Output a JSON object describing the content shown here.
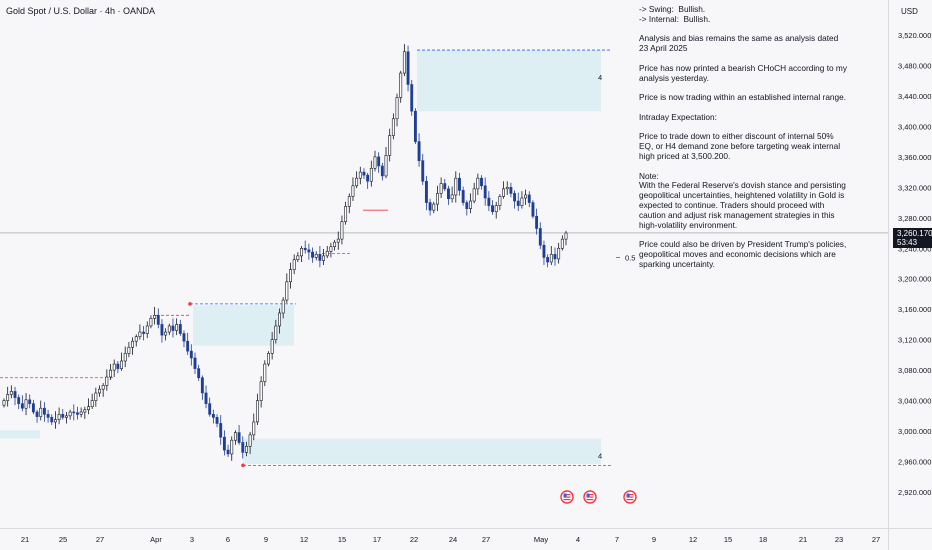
{
  "header": {
    "title": "Gold Spot / U.S. Dollar · 4h · OANDA",
    "currency": "USD"
  },
  "price_tag": {
    "price": "3,260.170",
    "countdown": "53:43"
  },
  "annotation": {
    "paragraphs": [
      "-> Swing:  Bullish.\n-> Internal:  Bullish.",
      "Analysis and bias remains the same as analysis dated 23 April 2025",
      "Price has now printed a bearish CHoCH according to my analysis yesterday.",
      "Price is now trading within an established internal range.",
      "Intraday Expectation:",
      "Price to trade down to either discount of internal 50% EQ, or H4 demand zone before targeting weak internal high priced at 3,500.200.",
      "Note:\nWith the Federal Reserve's dovish stance and persisting geopolitical uncertainties, heightened volatility in Gold is expected to continue. Traders should proceed with caution and adjust risk management strategies in this high-volatility environment.",
      "Price could also be driven by President Trump's policies, geopolitical moves and economic decisions which are sparking uncertainty."
    ]
  },
  "eq_label": "0.5",
  "zone_labels": [
    "4",
    "4"
  ],
  "chart_data": {
    "type": "candlestick",
    "title": "Gold Spot / U.S. Dollar · 4h · OANDA",
    "ylim": [
      2900,
      3540
    ],
    "y_ticks": [
      "3,520.000",
      "3,480.000",
      "3,440.000",
      "3,400.000",
      "3,360.000",
      "3,320.000",
      "3,280.000",
      "3,240.000",
      "3,200.000",
      "3,160.000",
      "3,120.000",
      "3,080.000",
      "3,040.000",
      "3,000.000",
      "2,960.000",
      "2,920.000"
    ],
    "x_ticks": [
      "21",
      "25",
      "27",
      "Apr",
      "3",
      "6",
      "9",
      "12",
      "15",
      "17",
      "22",
      "24",
      "27",
      "May",
      "4",
      "7",
      "9",
      "12",
      "15",
      "18",
      "21",
      "23",
      "27"
    ],
    "close_series": [
      3040,
      3048,
      3052,
      3044,
      3036,
      3030,
      3041,
      3036,
      3025,
      3019,
      3030,
      3022,
      3018,
      3012,
      3015,
      3022,
      3018,
      3020,
      3025,
      3024,
      3022,
      3025,
      3028,
      3032,
      3040,
      3050,
      3055,
      3060,
      3071,
      3080,
      3088,
      3082,
      3092,
      3102,
      3110,
      3118,
      3124,
      3130,
      3128,
      3138,
      3148,
      3152,
      3140,
      3126,
      3130,
      3138,
      3132,
      3140,
      3128,
      3118,
      3105,
      3096,
      3082,
      3070,
      3050,
      3036,
      3022,
      3018,
      3010,
      2992,
      2975,
      2970,
      2988,
      2998,
      2985,
      2972,
      2980,
      2995,
      3012,
      3040,
      3065,
      3088,
      3102,
      3120,
      3138,
      3155,
      3172,
      3196,
      3212,
      3225,
      3230,
      3240,
      3238,
      3235,
      3228,
      3232,
      3224,
      3230,
      3236,
      3242,
      3248,
      3252,
      3275,
      3295,
      3308,
      3322,
      3332,
      3340,
      3336,
      3328,
      3345,
      3360,
      3348,
      3335,
      3362,
      3388,
      3410,
      3438,
      3470,
      3498,
      3455,
      3420,
      3380,
      3355,
      3328,
      3300,
      3290,
      3298,
      3312,
      3325,
      3318,
      3305,
      3310,
      3332,
      3316,
      3300,
      3292,
      3302,
      3318,
      3332,
      3322,
      3306,
      3296,
      3288,
      3296,
      3308,
      3318,
      3320,
      3312,
      3302,
      3296,
      3306,
      3310,
      3300,
      3282,
      3266,
      3244,
      3228,
      3222,
      3232,
      3226,
      3240,
      3252,
      3260
    ],
    "last_price": 3260.17,
    "levels": {
      "weak_internal_high": 3500.2,
      "internal_eq_50": 3228
    },
    "zones": [
      {
        "type": "supply",
        "top": 3500,
        "bottom": 3420
      },
      {
        "type": "supply",
        "top": 3165,
        "bottom": 3112
      },
      {
        "type": "demand",
        "top": 2990,
        "bottom": 2957
      },
      {
        "type": "demand",
        "top": 3001,
        "bottom": 2990
      }
    ]
  }
}
